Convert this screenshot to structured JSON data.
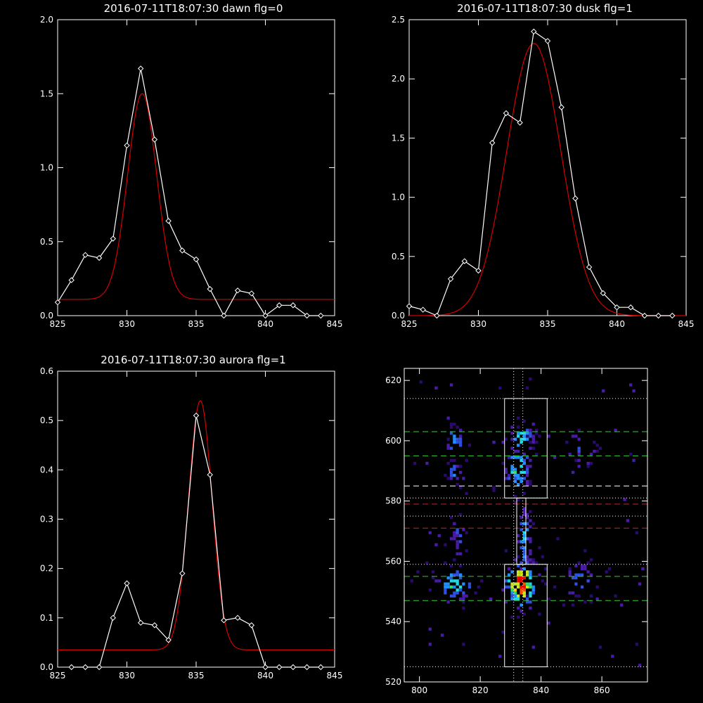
{
  "page": {
    "background": "#000000",
    "axis_color": "#ffffff",
    "fit_color": "#d40000",
    "data_color": "#ffffff"
  },
  "chart_data": [
    {
      "type": "line",
      "title": "2016-07-11T18:07:30 dawn flg=0",
      "xlim": [
        825,
        845
      ],
      "ylim": [
        0,
        2.0
      ],
      "xticks": [
        825,
        830,
        835,
        840,
        845
      ],
      "xtick_labels": [
        "825",
        "830",
        "835",
        "840",
        "845"
      ],
      "yticks": [
        0,
        0.5,
        1.0,
        1.5,
        2.0
      ],
      "ytick_labels": [
        "0.0",
        "0.5",
        "1.0",
        "1.5",
        "2.0"
      ],
      "series": [
        {
          "role": "data",
          "marker": "diamond",
          "x": [
            825,
            826,
            827,
            828,
            829,
            830,
            831,
            832,
            833,
            834,
            835,
            836,
            837,
            838,
            839,
            840,
            841,
            842,
            843,
            844
          ],
          "y": [
            0.09,
            0.24,
            0.41,
            0.39,
            0.52,
            1.15,
            1.67,
            1.19,
            0.64,
            0.44,
            0.38,
            0.18,
            0.0,
            0.17,
            0.15,
            0.0,
            0.07,
            0.07,
            0.0,
            0.0
          ]
        },
        {
          "role": "fit",
          "shape": "gaussian",
          "amplitude": 1.39,
          "center": 831.1,
          "sigma": 1.05,
          "offset": 0.11
        }
      ]
    },
    {
      "type": "line",
      "title": "2016-07-11T18:07:30 dusk flg=1",
      "xlim": [
        825,
        845
      ],
      "ylim": [
        0,
        2.5
      ],
      "xticks": [
        825,
        830,
        835,
        840,
        845
      ],
      "xtick_labels": [
        "825",
        "830",
        "835",
        "840",
        "845"
      ],
      "yticks": [
        0,
        0.5,
        1.0,
        1.5,
        2.0,
        2.5
      ],
      "ytick_labels": [
        "0.0",
        "0.5",
        "1.0",
        "1.5",
        "2.0",
        "2.5"
      ],
      "series": [
        {
          "role": "data",
          "marker": "diamond",
          "x": [
            825,
            826,
            827,
            828,
            829,
            830,
            831,
            832,
            833,
            834,
            835,
            836,
            837,
            838,
            839,
            840,
            841,
            842,
            843,
            844
          ],
          "y": [
            0.08,
            0.05,
            0.0,
            0.31,
            0.46,
            0.38,
            1.46,
            1.71,
            1.63,
            2.4,
            2.32,
            1.76,
            0.99,
            0.41,
            0.19,
            0.07,
            0.07,
            0.0,
            0.0,
            0.0
          ]
        },
        {
          "role": "fit",
          "shape": "gaussian",
          "amplitude": 2.3,
          "center": 834.0,
          "sigma": 1.95,
          "offset": 0.0
        }
      ]
    },
    {
      "type": "line",
      "title": "2016-07-11T18:07:30 aurora flg=1",
      "xlim": [
        825,
        845
      ],
      "ylim": [
        0,
        0.6
      ],
      "xticks": [
        825,
        830,
        835,
        840,
        845
      ],
      "xtick_labels": [
        "825",
        "830",
        "835",
        "840",
        "845"
      ],
      "yticks": [
        0,
        0.1,
        0.2,
        0.3,
        0.4,
        0.5,
        0.6
      ],
      "ytick_labels": [
        "0.0",
        "0.1",
        "0.2",
        "0.3",
        "0.4",
        "0.5",
        "0.6"
      ],
      "series": [
        {
          "role": "data",
          "marker": "diamond",
          "x": [
            826,
            827,
            828,
            829,
            830,
            831,
            832,
            833,
            834,
            835,
            836,
            837,
            838,
            839,
            840,
            841,
            842,
            843,
            844
          ],
          "y": [
            0.0,
            0.0,
            0.0,
            0.1,
            0.17,
            0.09,
            0.085,
            0.055,
            0.19,
            0.51,
            0.39,
            0.095,
            0.1,
            0.085,
            0.0,
            0.0,
            0.0,
            0.0,
            0.0
          ]
        },
        {
          "role": "fit",
          "shape": "gaussian",
          "amplitude": 0.505,
          "center": 835.3,
          "sigma": 0.85,
          "offset": 0.035
        }
      ]
    },
    {
      "type": "heatmap",
      "title": "",
      "xlim": [
        795,
        875
      ],
      "ylim": [
        520,
        624
      ],
      "xticks": [
        800,
        820,
        840,
        860
      ],
      "xtick_labels": [
        "800",
        "820",
        "840",
        "860"
      ],
      "yticks": [
        520,
        540,
        560,
        580,
        600,
        620
      ],
      "ytick_labels": [
        "520",
        "540",
        "560",
        "580",
        "600",
        "620"
      ],
      "colorscale": [
        "#2b0a6e",
        "#4a1aa8",
        "#2f4fe0",
        "#1f8fff",
        "#20d8e0",
        "#30e060",
        "#c8e820",
        "#ffd000",
        "#ff5000",
        "#ff0000"
      ],
      "clusters": [
        {
          "cx": 833,
          "cy": 552,
          "sx": 3.0,
          "sy": 4.5,
          "peak": 1.0,
          "n": 120
        },
        {
          "cx": 811,
          "cy": 552,
          "sx": 3.5,
          "sy": 3.5,
          "peak": 0.55,
          "n": 55
        },
        {
          "cx": 832,
          "cy": 590,
          "sx": 2.5,
          "sy": 4.0,
          "peak": 0.6,
          "n": 60
        },
        {
          "cx": 833,
          "cy": 600,
          "sx": 2.5,
          "sy": 3.5,
          "peak": 0.5,
          "n": 45
        },
        {
          "cx": 834,
          "cy": 567,
          "sx": 1.5,
          "sy": 7.0,
          "peak": 0.42,
          "n": 45
        },
        {
          "cx": 811,
          "cy": 600,
          "sx": 2.0,
          "sy": 2.5,
          "peak": 0.45,
          "n": 25
        },
        {
          "cx": 811,
          "cy": 589,
          "sx": 1.2,
          "sy": 2.0,
          "peak": 0.4,
          "n": 18
        },
        {
          "cx": 852,
          "cy": 553,
          "sx": 4.0,
          "sy": 4.0,
          "peak": 0.3,
          "n": 35
        },
        {
          "cx": 852,
          "cy": 598,
          "sx": 3.5,
          "sy": 4.0,
          "peak": 0.25,
          "n": 20
        },
        {
          "cx": 812,
          "cy": 568,
          "sx": 2.0,
          "sy": 5.0,
          "peak": 0.28,
          "n": 25
        }
      ],
      "scatter_points": 70,
      "boxes": [
        {
          "x": [
            828,
            842
          ],
          "y": [
            581,
            614
          ]
        },
        {
          "x": [
            828,
            842
          ],
          "y": [
            525,
            559
          ]
        },
        {
          "x": [
            832,
            835
          ],
          "y": [
            559,
            581
          ]
        }
      ],
      "hlines": [
        {
          "y": 614,
          "style": "dotted",
          "color": "#ffffff"
        },
        {
          "y": 603,
          "style": "dashed",
          "color": "#33cc33"
        },
        {
          "y": 595,
          "style": "dashed",
          "color": "#33cc33"
        },
        {
          "y": 585,
          "style": "dashed",
          "color": "#ffffff"
        },
        {
          "y": 581,
          "style": "dotted",
          "color": "#ffffff"
        },
        {
          "y": 579,
          "style": "dashed",
          "color": "#cc2222"
        },
        {
          "y": 575,
          "style": "dotted",
          "color": "#ffffff"
        },
        {
          "y": 571,
          "style": "dashed",
          "color": "#cc2222"
        },
        {
          "y": 559,
          "style": "dotted",
          "color": "#ffffff"
        },
        {
          "y": 555,
          "style": "dashed",
          "color": "#33cc33"
        },
        {
          "y": 547,
          "style": "dashed",
          "color": "#33cc33"
        },
        {
          "y": 525,
          "style": "dotted",
          "color": "#ffffff"
        }
      ],
      "vlines": [
        {
          "x": 831,
          "style": "dotted",
          "color": "#ffffff"
        },
        {
          "x": 834,
          "style": "dotted",
          "color": "#ffffff"
        }
      ]
    }
  ]
}
